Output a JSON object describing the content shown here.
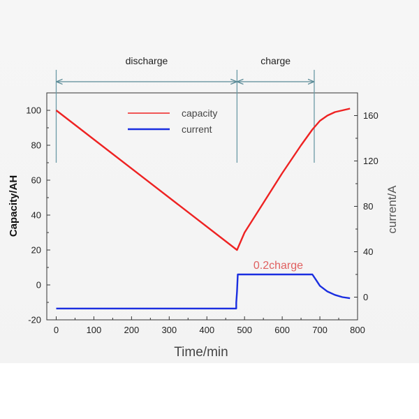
{
  "chart_data": {
    "type": "line",
    "title": "",
    "xlabel": "Time/min",
    "ylabel_left": "Capacity/AH",
    "ylabel_right": "current/A",
    "x_ticks": [
      0,
      100,
      200,
      300,
      400,
      500,
      600,
      700,
      800
    ],
    "y_left_ticks": [
      -20,
      0,
      20,
      40,
      60,
      80,
      100
    ],
    "y_right_ticks": [
      0,
      40,
      80,
      120,
      160
    ],
    "xlim": [
      -25,
      800
    ],
    "ylim_left": [
      -20,
      110
    ],
    "ylim_right": [
      -20,
      180
    ],
    "grid": false,
    "legend_position": "top-center",
    "series": [
      {
        "name": "capacity",
        "axis": "left",
        "color": "#ee2222",
        "x": [
          0,
          480,
          500,
          550,
          600,
          650,
          680,
          700,
          720,
          740,
          760,
          780
        ],
        "y": [
          100,
          20,
          30,
          47,
          64,
          80,
          89,
          94,
          97,
          99,
          100,
          101
        ]
      },
      {
        "name": "current",
        "axis": "right",
        "color": "#1a2ee0",
        "x": [
          0,
          478,
          478,
          480,
          482,
          680,
          690,
          700,
          720,
          740,
          760,
          780
        ],
        "y": [
          -10,
          -10,
          -5,
          5,
          20,
          20,
          15,
          10,
          5,
          2,
          0,
          -1
        ]
      }
    ],
    "phases": [
      {
        "label": "discharge",
        "start": 0,
        "end": 480
      },
      {
        "label": "charge",
        "start": 480,
        "end": 685
      }
    ],
    "annotations": [
      {
        "text": "0.2charge",
        "x": 505,
        "y_left": 10
      }
    ]
  }
}
